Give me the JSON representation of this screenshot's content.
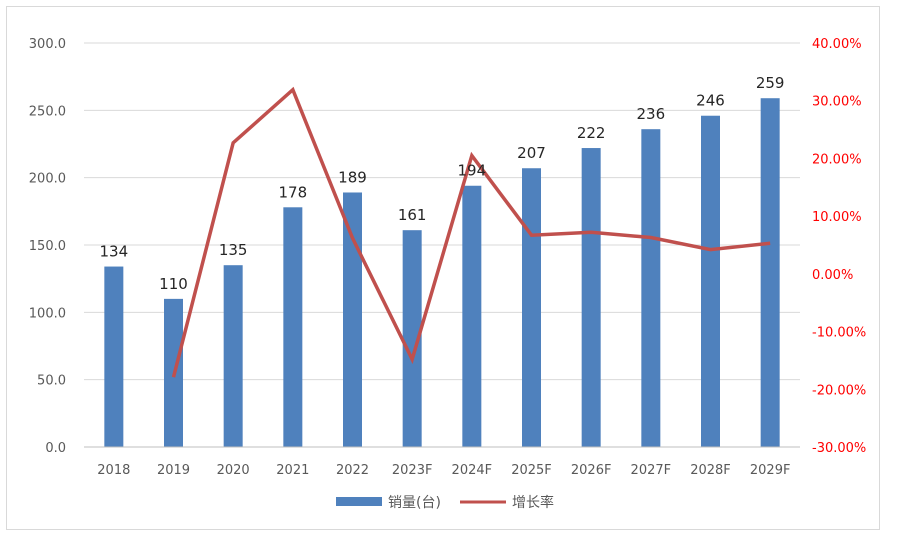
{
  "chart_data": {
    "type": "bar",
    "categories": [
      "2018",
      "2019",
      "2020",
      "2021",
      "2022",
      "2023F",
      "2024F",
      "2025F",
      "2026F",
      "2027F",
      "2028F",
      "2029F"
    ],
    "series": [
      {
        "name": "销量(台)",
        "type": "bar",
        "axis": "left",
        "color": "#4f81bd",
        "values": [
          134,
          110,
          135,
          178,
          189,
          161,
          194,
          207,
          222,
          236,
          246,
          259
        ]
      },
      {
        "name": "增长率",
        "type": "line",
        "axis": "right",
        "color": "#c0504d",
        "values": [
          null,
          -17.9,
          22.7,
          31.9,
          6.2,
          -14.8,
          20.5,
          6.7,
          7.2,
          6.3,
          4.2,
          5.3
        ]
      }
    ],
    "y_left": {
      "min": 0,
      "max": 300,
      "step": 50,
      "tick_labels": [
        "0.0",
        "50.0",
        "100.0",
        "150.0",
        "200.0",
        "250.0",
        "300.0"
      ]
    },
    "y_right": {
      "min": -30,
      "max": 40,
      "step": 10,
      "tick_labels": [
        "-30.00%",
        "-20.00%",
        "-10.00%",
        "0.00%",
        "10.00%",
        "20.00%",
        "30.00%",
        "40.00%"
      ]
    },
    "data_labels": [
      "134",
      "110",
      "135",
      "178",
      "189",
      "161",
      "194",
      "207",
      "222",
      "236",
      "246",
      "259"
    ],
    "grid": true,
    "legend_position": "bottom"
  }
}
